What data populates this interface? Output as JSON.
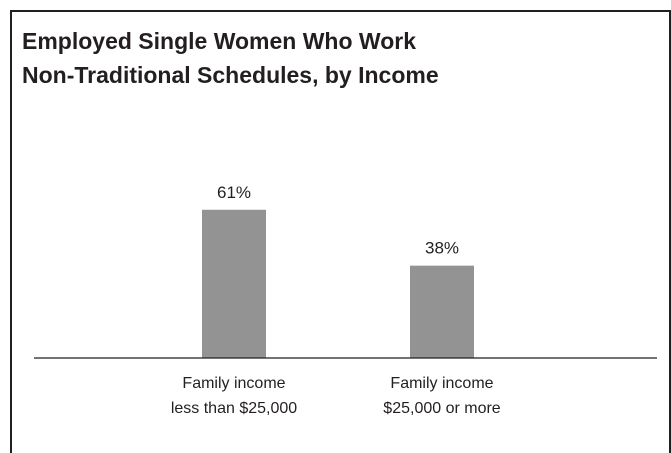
{
  "chart_data": {
    "type": "bar",
    "title": "Employed Single Women Who Work\nNon-Traditional Schedules, by Income",
    "categories": [
      [
        "Family income",
        "less than $25,000"
      ],
      [
        "Family income",
        "$25,000 or more"
      ]
    ],
    "values": [
      61,
      38
    ],
    "value_labels": [
      "61%",
      "38%"
    ],
    "ylim": [
      0,
      100
    ],
    "xlabel": "",
    "ylabel": "",
    "grid": false,
    "legend": "none",
    "colors": {
      "bar": "#939393",
      "text": "#231f20",
      "axis": "#231f20"
    }
  }
}
